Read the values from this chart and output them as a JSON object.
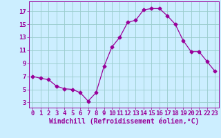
{
  "x": [
    0,
    1,
    2,
    3,
    4,
    5,
    6,
    7,
    8,
    9,
    10,
    11,
    12,
    13,
    14,
    15,
    16,
    17,
    18,
    19,
    20,
    21,
    22,
    23
  ],
  "y": [
    7.0,
    6.7,
    6.5,
    5.5,
    5.1,
    5.0,
    4.5,
    3.2,
    4.5,
    8.5,
    11.5,
    13.0,
    15.3,
    15.6,
    17.2,
    17.4,
    17.4,
    16.3,
    15.0,
    12.5,
    10.8,
    10.8,
    9.3,
    7.8
  ],
  "line_color": "#990099",
  "marker": "D",
  "marker_size": 2.5,
  "bg_color": "#cceeff",
  "grid_color": "#99cccc",
  "xlabel": "Windchill (Refroidissement éolien,°C)",
  "xlabel_color": "#990099",
  "xlabel_fontsize": 7,
  "tick_color": "#990099",
  "tick_fontsize": 6.5,
  "ytick_values": [
    3,
    5,
    7,
    9,
    11,
    13,
    15,
    17
  ],
  "ylim": [
    2.2,
    18.5
  ],
  "xlim": [
    -0.5,
    23.5
  ]
}
